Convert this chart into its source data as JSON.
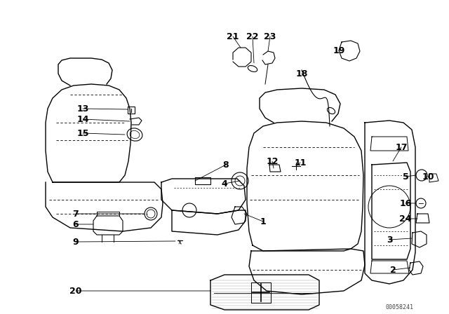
{
  "bg_color": "#ffffff",
  "line_color": "#000000",
  "watermark": "00058241",
  "fig_width": 6.4,
  "fig_height": 4.48,
  "dpi": 100
}
